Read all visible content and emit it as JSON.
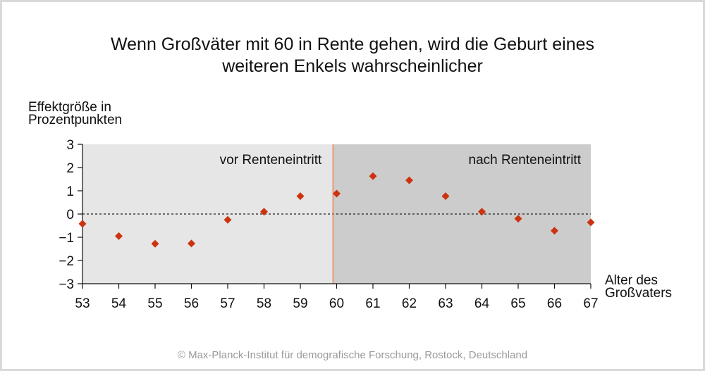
{
  "title_line1": "Wenn Großväter mit 60 in Rente gehen, wird die Geburt eines",
  "title_line2": "weiteren Enkels wahrscheinlicher",
  "footer": "© Max-Planck-Institut für demografische Forschung, Rostock, Deutschland",
  "chart_data": {
    "type": "scatter",
    "title": "Wenn Großväter mit 60 in Rente gehen, wird die Geburt eines weiteren Enkels wahrscheinlicher",
    "ylabel_line1": "Effektgröße in",
    "ylabel_line2": "Prozentpunkten",
    "xlabel_line1": "Alter des",
    "xlabel_line2": "Großvaters",
    "xlim": [
      53,
      67
    ],
    "ylim": [
      -3,
      3
    ],
    "x_ticks": [
      53,
      54,
      55,
      56,
      57,
      58,
      59,
      60,
      61,
      62,
      63,
      64,
      65,
      66,
      67
    ],
    "y_ticks": [
      3,
      2,
      1,
      0,
      -1,
      -2,
      -3
    ],
    "y_tick_labels": [
      "3",
      "2",
      "1",
      "0",
      "−1",
      "−2",
      "−3"
    ],
    "x": [
      53,
      54,
      55,
      56,
      57,
      58,
      59,
      60,
      61,
      62,
      63,
      64,
      65,
      66,
      67
    ],
    "y": [
      -0.42,
      -0.95,
      -1.28,
      -1.27,
      -0.25,
      0.1,
      0.77,
      0.88,
      1.63,
      1.45,
      0.77,
      0.1,
      -0.2,
      -0.72,
      -0.36
    ],
    "reference_line_y": 0,
    "retirement_age": 59.9,
    "regions": [
      {
        "label": "vor Renteneintritt",
        "from": 53,
        "to": 59.9,
        "color": "#e6e6e6"
      },
      {
        "label": "nach Renteneintritt",
        "from": 59.9,
        "to": 67,
        "color": "#cccccc"
      }
    ],
    "marker_color": "#cc3311",
    "divider_color": "#f08a5d",
    "grid": false,
    "legend": "none"
  }
}
